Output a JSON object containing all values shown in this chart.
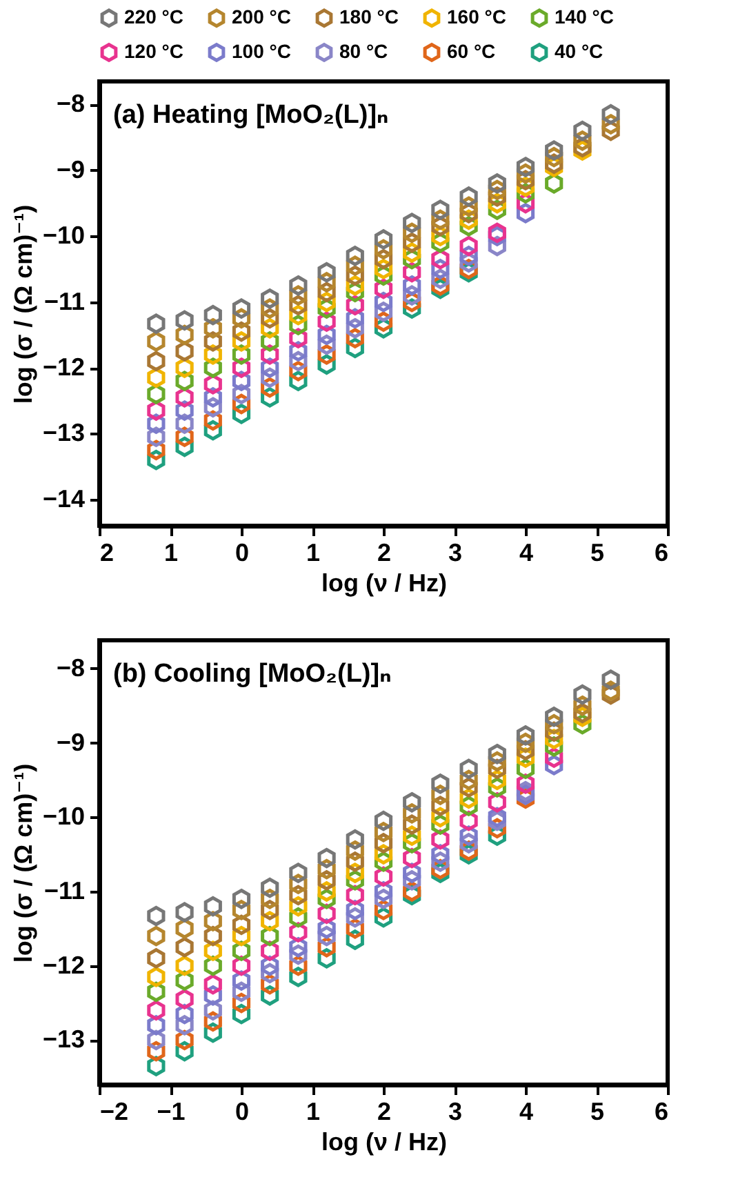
{
  "chart_data": [
    {
      "type": "scatter",
      "title": "(a) Heating [MoO₂(L)]ₙ",
      "xlabel": "log (ν / Hz)",
      "ylabel": "log (σ / (Ω cm)⁻¹)",
      "x": [
        -1.2,
        -0.8,
        -0.4,
        0,
        0.4,
        0.8,
        1.2,
        1.6,
        2.0,
        2.4,
        2.8,
        3.2,
        3.6,
        4.0,
        4.4,
        4.8,
        5.2
      ],
      "xlim": [
        -2,
        6
      ],
      "xticks": [
        {
          "value": -2,
          "label": "2"
        },
        {
          "value": -1,
          "label": "1"
        },
        0,
        1,
        2,
        3,
        4,
        5,
        6
      ],
      "ylim": [
        -14.4,
        -7.65
      ],
      "yticks": [
        -14,
        -13,
        -12,
        -11,
        -10,
        -9,
        -8
      ],
      "legend": "top",
      "grid": false,
      "series": [
        {
          "name": "220 °C",
          "color": "#777777",
          "values": [
            -11.33,
            -11.28,
            -11.2,
            -11.1,
            -10.95,
            -10.75,
            -10.55,
            -10.3,
            -10.05,
            -9.8,
            -9.6,
            -9.4,
            -9.2,
            -8.95,
            -8.7,
            -8.4,
            -8.15
          ]
        },
        {
          "name": "200 °C",
          "color": "#b5862e",
          "values": [
            -11.6,
            -11.5,
            -11.4,
            -11.25,
            -11.1,
            -10.9,
            -10.7,
            -10.45,
            -10.2,
            -9.95,
            -9.75,
            -9.55,
            -9.3,
            -9.05,
            -8.8,
            -8.55,
            -8.3
          ]
        },
        {
          "name": "180 °C",
          "color": "#a97733",
          "values": [
            -11.9,
            -11.75,
            -11.6,
            -11.45,
            -11.25,
            -11.05,
            -10.85,
            -10.6,
            -10.35,
            -10.1,
            -9.85,
            -9.65,
            -9.4,
            -9.15,
            -8.9,
            -8.65,
            -8.4
          ]
        },
        {
          "name": "160 °C",
          "color": "#f0b400",
          "values": [
            -12.15,
            -12.0,
            -11.8,
            -11.6,
            -11.4,
            -11.2,
            -11.0,
            -10.75,
            -10.5,
            -10.25,
            -10.0,
            -9.75,
            -9.5,
            -9.25,
            -8.95,
            -8.7,
            null
          ]
        },
        {
          "name": "140 °C",
          "color": "#6aaa2a",
          "values": [
            -12.4,
            -12.2,
            -12.0,
            -11.8,
            -11.6,
            -11.35,
            -11.1,
            -10.85,
            -10.6,
            -10.35,
            -10.1,
            -9.85,
            -9.6,
            -9.35,
            -9.2,
            null,
            null
          ]
        },
        {
          "name": "120 °C",
          "color": "#e8338f",
          "values": [
            -12.65,
            -12.45,
            -12.25,
            -12.0,
            -11.8,
            -11.55,
            -11.3,
            -11.05,
            -10.8,
            -10.55,
            -10.35,
            -10.15,
            -9.95,
            -9.5,
            null,
            null,
            null
          ]
        },
        {
          "name": "100 °C",
          "color": "#7b7bcb",
          "values": [
            -12.85,
            -12.65,
            -12.45,
            -12.2,
            -12.0,
            -11.75,
            -11.5,
            -11.25,
            -11.0,
            -10.75,
            -10.5,
            -10.3,
            -10.0,
            -9.65,
            null,
            null,
            null
          ]
        },
        {
          "name": "80 °C",
          "color": "#8a86c8",
          "values": [
            -13.05,
            -12.85,
            -12.6,
            -12.4,
            -12.15,
            -11.9,
            -11.65,
            -11.4,
            -11.15,
            -10.9,
            -10.65,
            -10.4,
            -10.15,
            null,
            null,
            null,
            null
          ]
        },
        {
          "name": "60 °C",
          "color": "#e0661a",
          "values": [
            -13.25,
            -13.05,
            -12.8,
            -12.55,
            -12.3,
            -12.05,
            -11.8,
            -11.55,
            -11.3,
            -11.0,
            -10.75,
            -10.5,
            null,
            null,
            null,
            null,
            null
          ]
        },
        {
          "name": "40 °C",
          "color": "#1fa07f",
          "values": [
            -13.4,
            -13.2,
            -12.95,
            -12.7,
            -12.45,
            -12.2,
            -11.95,
            -11.7,
            -11.4,
            -11.1,
            -10.8,
            -10.55,
            null,
            null,
            null,
            null,
            null
          ]
        }
      ]
    },
    {
      "type": "scatter",
      "title": "(b) Cooling [MoO₂(L)]ₙ",
      "xlabel": "log (ν / Hz)",
      "ylabel": "log (σ / (Ω cm)⁻¹)",
      "x": [
        -1.2,
        -0.8,
        -0.4,
        0,
        0.4,
        0.8,
        1.2,
        1.6,
        2.0,
        2.4,
        2.8,
        3.2,
        3.6,
        4.0,
        4.4,
        4.8,
        5.2
      ],
      "xlim": [
        -2,
        6
      ],
      "xticks": [
        -2,
        -1,
        0,
        1,
        2,
        3,
        4,
        5,
        6
      ],
      "ylim": [
        -13.6,
        -7.62
      ],
      "yticks": [
        -13,
        -12,
        -11,
        -10,
        -9,
        -8
      ],
      "legend": "top",
      "grid": false,
      "series": [
        {
          "name": "220 °C",
          "color": "#777777",
          "values": [
            -11.33,
            -11.28,
            -11.2,
            -11.1,
            -10.95,
            -10.75,
            -10.55,
            -10.3,
            -10.05,
            -9.8,
            -9.55,
            -9.35,
            -9.15,
            -8.9,
            -8.65,
            -8.35,
            -8.15
          ]
        },
        {
          "name": "200 °C",
          "color": "#b5862e",
          "values": [
            -11.6,
            -11.5,
            -11.4,
            -11.25,
            -11.1,
            -10.9,
            -10.7,
            -10.45,
            -10.2,
            -9.95,
            -9.7,
            -9.5,
            -9.25,
            -9.0,
            -8.75,
            -8.5,
            -8.3
          ]
        },
        {
          "name": "180 °C",
          "color": "#a97733",
          "values": [
            -11.9,
            -11.75,
            -11.6,
            -11.45,
            -11.25,
            -11.05,
            -10.85,
            -10.6,
            -10.35,
            -10.1,
            -9.85,
            -9.6,
            -9.35,
            -9.1,
            -8.85,
            -8.6,
            -8.35
          ]
        },
        {
          "name": "160 °C",
          "color": "#f0b400",
          "values": [
            -12.15,
            -12.0,
            -11.8,
            -11.6,
            -11.4,
            -11.2,
            -11.0,
            -10.75,
            -10.5,
            -10.25,
            -10.0,
            -9.75,
            -9.5,
            -9.2,
            -8.95,
            -8.65,
            null
          ]
        },
        {
          "name": "140 °C",
          "color": "#6aaa2a",
          "values": [
            -12.35,
            -12.2,
            -12.0,
            -11.8,
            -11.6,
            -11.35,
            -11.1,
            -10.85,
            -10.6,
            -10.35,
            -10.1,
            -9.85,
            -9.6,
            -9.35,
            -9.05,
            -8.75,
            null
          ]
        },
        {
          "name": "120 °C",
          "color": "#e8338f",
          "values": [
            -12.6,
            -12.45,
            -12.25,
            -12.0,
            -11.8,
            -11.55,
            -11.3,
            -11.05,
            -10.8,
            -10.55,
            -10.3,
            -10.05,
            -9.8,
            -9.55,
            -9.2,
            null,
            null
          ]
        },
        {
          "name": "100 °C",
          "color": "#7b7bcb",
          "values": [
            -12.8,
            -12.65,
            -12.4,
            -12.2,
            -12.0,
            -11.75,
            -11.5,
            -11.25,
            -11.0,
            -10.75,
            -10.5,
            -10.25,
            -10.0,
            -9.7,
            -9.3,
            null,
            null
          ]
        },
        {
          "name": "80 °C",
          "color": "#8a86c8",
          "values": [
            -13.0,
            -12.8,
            -12.6,
            -12.35,
            -12.1,
            -11.85,
            -11.6,
            -11.35,
            -11.1,
            -10.85,
            -10.6,
            -10.35,
            -10.05,
            -9.65,
            null,
            null,
            null
          ]
        },
        {
          "name": "60 °C",
          "color": "#e0661a",
          "values": [
            -13.15,
            -13.0,
            -12.75,
            -12.5,
            -12.25,
            -12.0,
            -11.75,
            -11.5,
            -11.25,
            -11.0,
            -10.7,
            -10.45,
            -10.15,
            -9.75,
            null,
            null,
            null
          ]
        },
        {
          "name": "40 °C",
          "color": "#1fa07f",
          "values": [
            -13.35,
            -13.15,
            -12.9,
            -12.65,
            -12.4,
            -12.15,
            -11.9,
            -11.65,
            -11.35,
            -11.05,
            -10.75,
            -10.5,
            -10.25,
            null,
            null,
            null,
            null
          ]
        }
      ]
    }
  ]
}
